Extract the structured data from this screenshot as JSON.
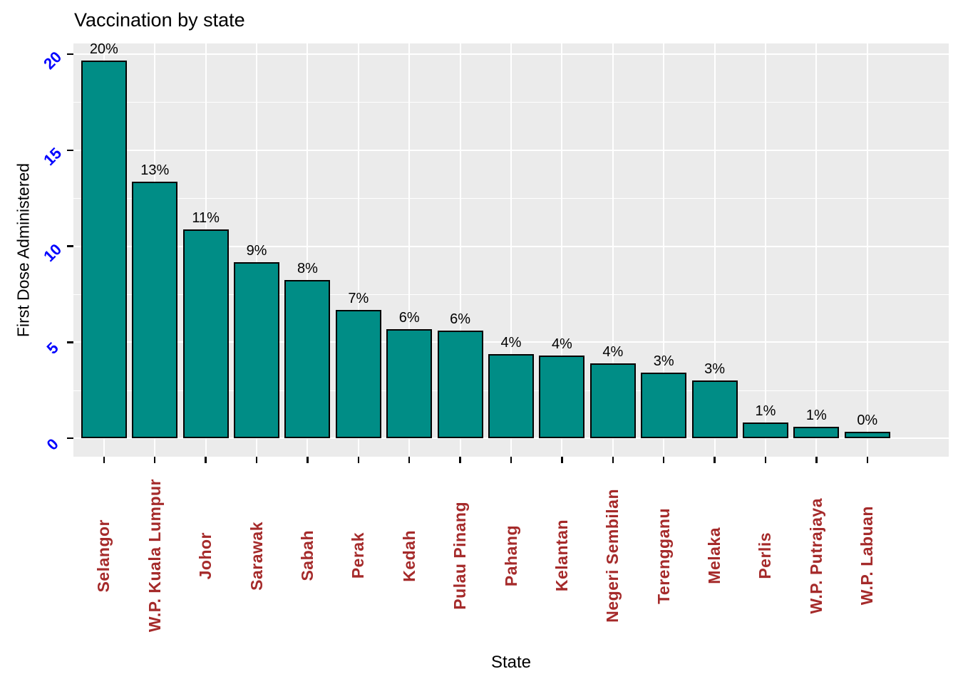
{
  "title": "Vaccination by state",
  "x_axis_title": "State",
  "y_axis_title": "First Dose Administered",
  "colors": {
    "bar_fill": "#008D86",
    "bar_stroke": "#000000",
    "panel_background": "#EBEBEB",
    "gridline": "#FFFFFF",
    "x_tick_label": "#A52A2A",
    "y_tick_label": "#0000FF",
    "title_text": "#000000"
  },
  "chart_data": {
    "type": "bar",
    "title": "Vaccination by state",
    "xlabel": "State",
    "ylabel": "First Dose Administered",
    "categories": [
      "Selangor",
      "W.P. Kuala Lumpur",
      "Johor",
      "Sarawak",
      "Sabah",
      "Perak",
      "Kedah",
      "Pulau Pinang",
      "Pahang",
      "Kelantan",
      "Negeri Sembilan",
      "Terengganu",
      "Melaka",
      "Perlis",
      "W.P. Putrajaya",
      "W.P. Labuan"
    ],
    "values": [
      19.65,
      13.35,
      10.87,
      9.15,
      8.25,
      6.67,
      5.67,
      5.6,
      4.37,
      4.3,
      3.9,
      3.4,
      3.0,
      0.8,
      0.6,
      0.33
    ],
    "bar_labels": [
      "20%",
      "13%",
      "11%",
      "9%",
      "8%",
      "7%",
      "6%",
      "6%",
      "4%",
      "4%",
      "4%",
      "3%",
      "3%",
      "1%",
      "1%",
      "0%"
    ],
    "yticks": [
      0,
      5,
      10,
      15,
      20
    ],
    "ytick_labels": [
      "0",
      "5",
      "10",
      "15",
      "20"
    ],
    "minor_yticks": [
      2.5,
      7.5,
      12.5,
      17.5
    ],
    "ylim": [
      -0.97,
      20.56
    ],
    "grid": true,
    "legend": false
  }
}
